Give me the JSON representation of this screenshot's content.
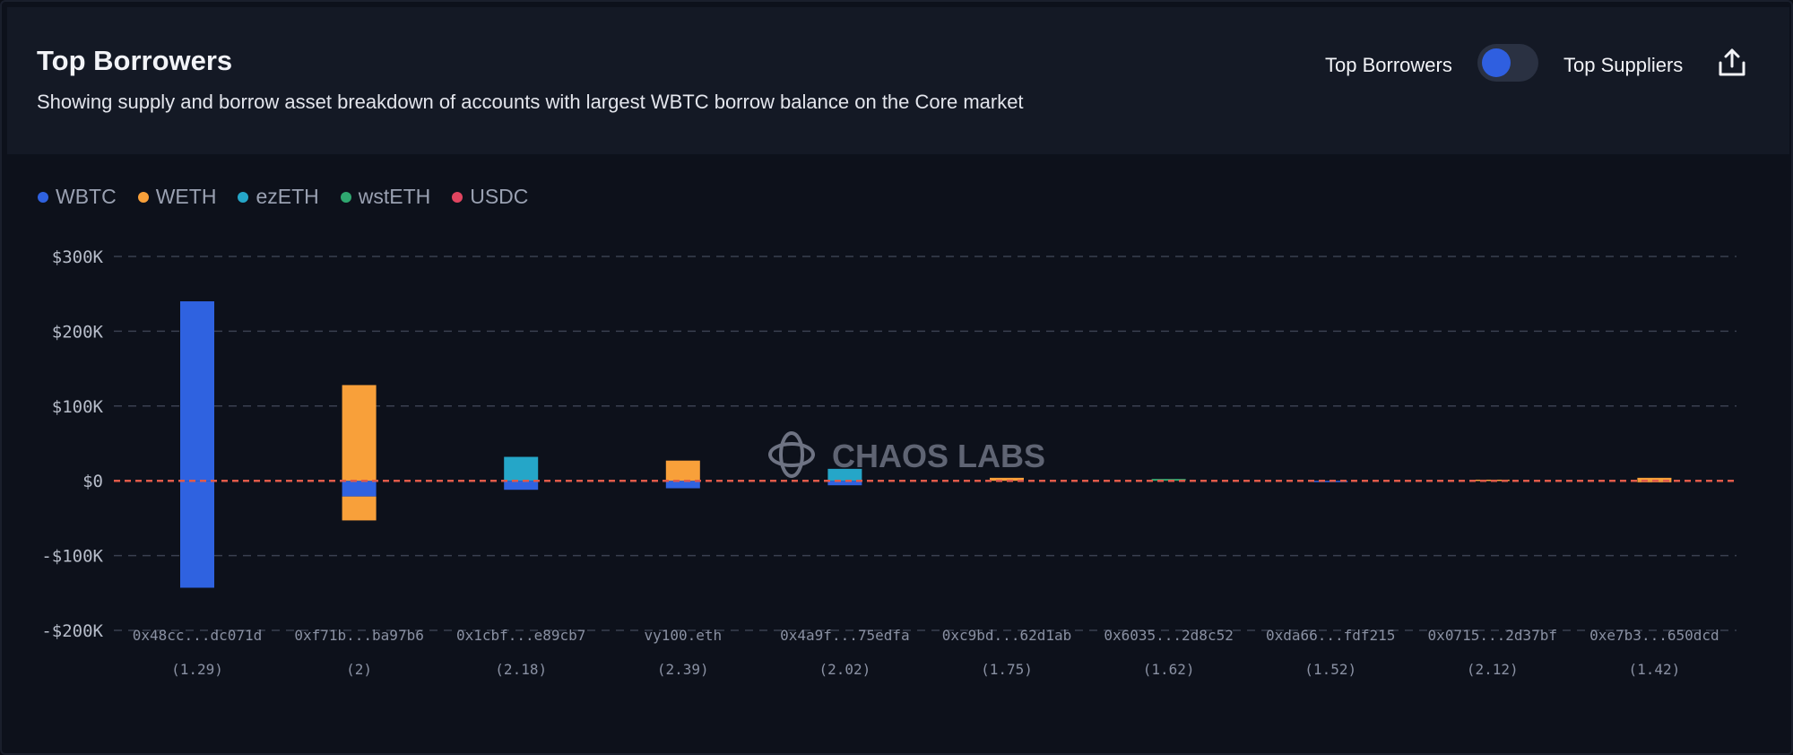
{
  "header": {
    "title": "Top Borrowers",
    "subtitle": "Showing supply and borrow asset breakdown of accounts with largest WBTC borrow balance on the Core market",
    "toggle_left_label": "Top Borrowers",
    "toggle_right_label": "Top Suppliers",
    "toggle_state": "Top Borrowers",
    "export_icon": "share-export-icon"
  },
  "legend": [
    {
      "name": "WBTC",
      "color": "#2f62e0"
    },
    {
      "name": "WETH",
      "color": "#f8a03a"
    },
    {
      "name": "ezETH",
      "color": "#25a6c8"
    },
    {
      "name": "wstETH",
      "color": "#2fa870"
    },
    {
      "name": "USDC",
      "color": "#e14560"
    }
  ],
  "watermark": "CHAOS LABS",
  "chart_data": {
    "type": "bar",
    "stacked": true,
    "categories": [
      "0x48cc...dc071d",
      "0xf71b...ba97b6",
      "0x1cbf...e89cb7",
      "vy100.eth",
      "0x4a9f...75edfa",
      "0xc9bd...62d1ab",
      "0x6035...2d8c52",
      "0xda66...fdf215",
      "0x0715...2d37bf",
      "0xe7b3...650dcd"
    ],
    "category_sublabels": [
      "(1.29)",
      "(2)",
      "(2.18)",
      "(2.39)",
      "(2.02)",
      "(1.75)",
      "(1.62)",
      "(1.52)",
      "(2.12)",
      "(1.42)"
    ],
    "series": [
      {
        "name": "WBTC",
        "values": [
          240000,
          -21000,
          -12000,
          -10000,
          -6000,
          0,
          0,
          -1500,
          0,
          0
        ]
      },
      {
        "name": "WETH",
        "values": [
          0,
          128000,
          0,
          27000,
          0,
          4000,
          0,
          0,
          1500,
          4000
        ]
      },
      {
        "name": "WETH",
        "values": [
          0,
          -32000,
          0,
          0,
          0,
          0,
          0,
          0,
          0,
          -2000
        ]
      },
      {
        "name": "ezETH",
        "values": [
          0,
          0,
          32000,
          0,
          16000,
          0,
          0,
          0,
          0,
          0
        ]
      },
      {
        "name": "wstETH",
        "values": [
          0,
          0,
          0,
          0,
          0,
          0,
          2500,
          0,
          0,
          0
        ]
      },
      {
        "name": "WBTC",
        "values": [
          -143000,
          0,
          0,
          0,
          0,
          0,
          0,
          0,
          0,
          0
        ]
      }
    ],
    "ylim": [
      -200000,
      300000
    ],
    "yticks": [
      300000,
      200000,
      100000,
      0,
      -100000,
      -200000
    ],
    "ytick_labels": [
      "$300K",
      "$200K",
      "$100K",
      "$0",
      "-$100K",
      "-$200K"
    ],
    "zero_line_color": "#e05a4a",
    "grid": true,
    "legend_position": "top-left",
    "xlabel": "",
    "ylabel": ""
  }
}
